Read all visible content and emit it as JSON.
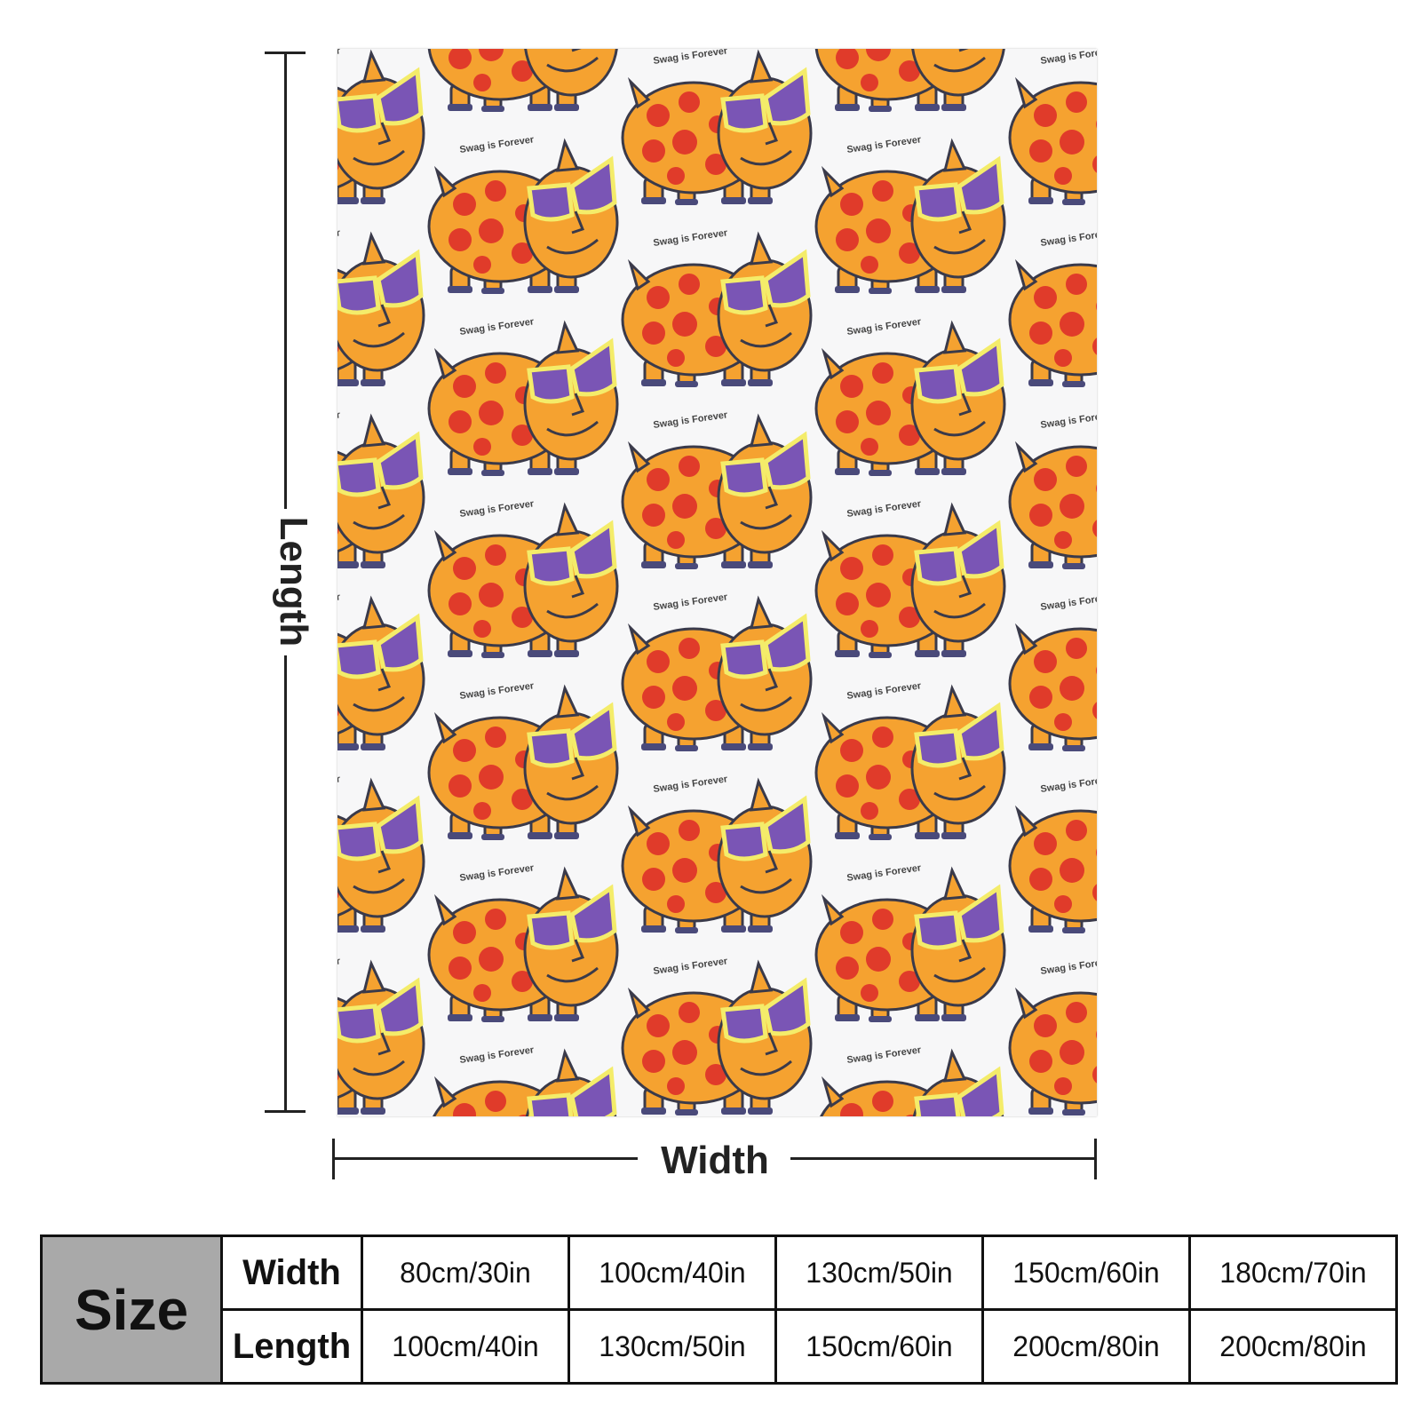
{
  "product": {
    "pattern_text": "Swag is Forever",
    "colors": {
      "body": "#f5a230",
      "spots": "#e03b2a",
      "lenses": "#7a55b5",
      "frames": "#f4ec6a",
      "outline": "#3a3a4a",
      "background": "#f7f7f8"
    }
  },
  "dimensions": {
    "length_label": "Length",
    "width_label": "Width"
  },
  "size_table": {
    "header": "Size",
    "rows": [
      {
        "label": "Width",
        "values": [
          "80cm/30in",
          "100cm/40in",
          "130cm/50in",
          "150cm/60in",
          "180cm/70in"
        ]
      },
      {
        "label": "Length",
        "values": [
          "100cm/40in",
          "130cm/50in",
          "150cm/60in",
          "200cm/80in",
          "200cm/80in"
        ]
      }
    ]
  }
}
